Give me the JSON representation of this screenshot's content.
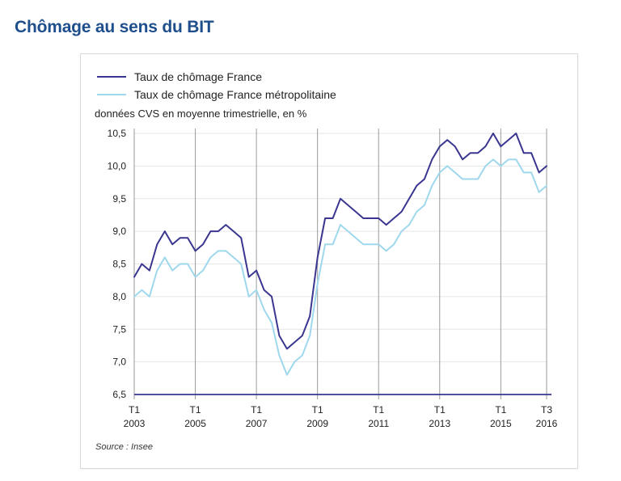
{
  "page": {
    "title": "Chômage au sens du BIT"
  },
  "chart_data": {
    "type": "line",
    "subtitle": "données CVS en moyenne trimestrielle, en %",
    "source": "Source : Insee",
    "ylim": [
      6.5,
      10.5
    ],
    "y_ticks": [
      "6,5",
      "7,0",
      "7,5",
      "8,0",
      "8,5",
      "9,0",
      "9,5",
      "10,0",
      "10,5"
    ],
    "y_tick_values": [
      6.5,
      7.0,
      7.5,
      8.0,
      8.5,
      9.0,
      9.5,
      10.0,
      10.5
    ],
    "x_ticks": [
      {
        "top": "T1",
        "bottom": "2003",
        "x": "2003-T1"
      },
      {
        "top": "T1",
        "bottom": "2005",
        "x": "2005-T1"
      },
      {
        "top": "T1",
        "bottom": "2007",
        "x": "2007-T1"
      },
      {
        "top": "T1",
        "bottom": "2009",
        "x": "2009-T1"
      },
      {
        "top": "T1",
        "bottom": "2011",
        "x": "2011-T1"
      },
      {
        "top": "T1",
        "bottom": "2013",
        "x": "2013-T1"
      },
      {
        "top": "T1",
        "bottom": "2015",
        "x": "2015-T1"
      },
      {
        "top": "T3",
        "bottom": "2016",
        "x": "2016-T3"
      }
    ],
    "grid": "horizontal",
    "legend_position": "top-left",
    "x": [
      "2003-T1",
      "2003-T2",
      "2003-T3",
      "2003-T4",
      "2004-T1",
      "2004-T2",
      "2004-T3",
      "2004-T4",
      "2005-T1",
      "2005-T2",
      "2005-T3",
      "2005-T4",
      "2006-T1",
      "2006-T2",
      "2006-T3",
      "2006-T4",
      "2007-T1",
      "2007-T2",
      "2007-T3",
      "2007-T4",
      "2008-T1",
      "2008-T2",
      "2008-T3",
      "2008-T4",
      "2009-T1",
      "2009-T2",
      "2009-T3",
      "2009-T4",
      "2010-T1",
      "2010-T2",
      "2010-T3",
      "2010-T4",
      "2011-T1",
      "2011-T2",
      "2011-T3",
      "2011-T4",
      "2012-T1",
      "2012-T2",
      "2012-T3",
      "2012-T4",
      "2013-T1",
      "2013-T2",
      "2013-T3",
      "2013-T4",
      "2014-T1",
      "2014-T2",
      "2014-T3",
      "2014-T4",
      "2015-T1",
      "2015-T2",
      "2015-T3",
      "2015-T4",
      "2016-T1",
      "2016-T2",
      "2016-T3"
    ],
    "series": [
      {
        "name": "Taux de chômage France",
        "color": "#3a3690",
        "values": [
          8.3,
          8.5,
          8.4,
          8.8,
          9.0,
          8.8,
          8.9,
          8.9,
          8.7,
          8.8,
          9.0,
          9.0,
          9.1,
          9.0,
          8.9,
          8.3,
          8.4,
          8.1,
          8.0,
          7.4,
          7.2,
          7.3,
          7.4,
          7.7,
          8.6,
          9.2,
          9.2,
          9.5,
          9.4,
          9.3,
          9.2,
          9.2,
          9.2,
          9.1,
          9.2,
          9.3,
          9.5,
          9.7,
          9.8,
          10.1,
          10.3,
          10.4,
          10.3,
          10.1,
          10.2,
          10.2,
          10.3,
          10.5,
          10.3,
          10.4,
          10.5,
          10.2,
          10.2,
          9.9,
          10.0
        ]
      },
      {
        "name": "Taux de chômage France métropolitaine",
        "color": "#9fd8ec",
        "values": [
          8.0,
          8.1,
          8.0,
          8.4,
          8.6,
          8.4,
          8.5,
          8.5,
          8.3,
          8.4,
          8.6,
          8.7,
          8.7,
          8.6,
          8.5,
          8.0,
          8.1,
          7.8,
          7.6,
          7.1,
          6.8,
          7.0,
          7.1,
          7.4,
          8.2,
          8.8,
          8.8,
          9.1,
          9.0,
          8.9,
          8.8,
          8.8,
          8.8,
          8.7,
          8.8,
          9.0,
          9.1,
          9.3,
          9.4,
          9.7,
          9.9,
          10.0,
          9.9,
          9.8,
          9.8,
          9.8,
          10.0,
          10.1,
          10.0,
          10.1,
          10.1,
          9.9,
          9.9,
          9.6,
          9.7
        ]
      }
    ]
  }
}
